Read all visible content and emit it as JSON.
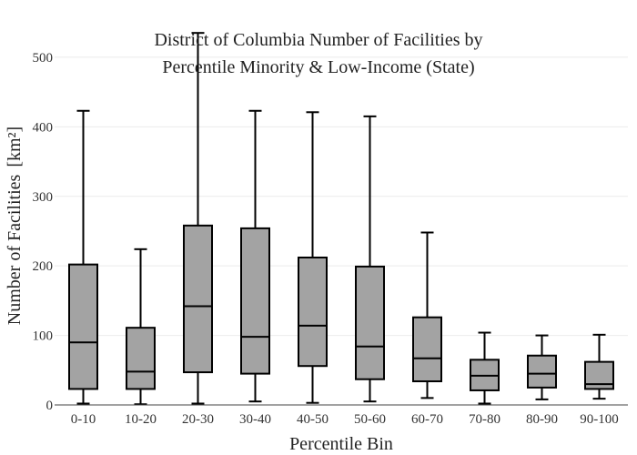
{
  "chart_data": {
    "type": "box",
    "title_lines": [
      "District of Columbia Number of Facilities by",
      "Percentile Minority & Low-Income (State)"
    ],
    "xlabel": "Percentile Bin",
    "ylabel": "Number of Facilities",
    "ylabel_unit": "[km²]",
    "ylim": [
      0,
      530
    ],
    "yticks": [
      0,
      100,
      200,
      300,
      400,
      500
    ],
    "categories": [
      "0-10",
      "10-20",
      "20-30",
      "30-40",
      "40-50",
      "50-60",
      "60-70",
      "70-80",
      "80-90",
      "90-100"
    ],
    "boxes": [
      {
        "min": 2,
        "q1": 23,
        "median": 90,
        "q3": 202,
        "max": 423
      },
      {
        "min": 1,
        "q1": 23,
        "median": 48,
        "q3": 111,
        "max": 224
      },
      {
        "min": 2,
        "q1": 47,
        "median": 142,
        "q3": 258,
        "max": 535
      },
      {
        "min": 5,
        "q1": 45,
        "median": 98,
        "q3": 254,
        "max": 423
      },
      {
        "min": 3,
        "q1": 56,
        "median": 114,
        "q3": 212,
        "max": 421
      },
      {
        "min": 5,
        "q1": 37,
        "median": 84,
        "q3": 199,
        "max": 415
      },
      {
        "min": 10,
        "q1": 34,
        "median": 67,
        "q3": 126,
        "max": 248
      },
      {
        "min": 2,
        "q1": 21,
        "median": 42,
        "q3": 65,
        "max": 104
      },
      {
        "min": 8,
        "q1": 25,
        "median": 45,
        "q3": 71,
        "max": 100
      },
      {
        "min": 9,
        "q1": 23,
        "median": 30,
        "q3": 62,
        "max": 101
      }
    ]
  }
}
